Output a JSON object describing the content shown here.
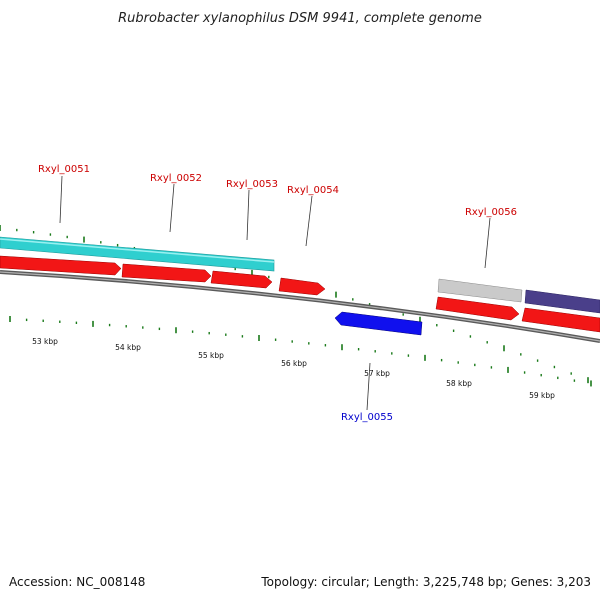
{
  "title": "Rubrobacter xylanophilus DSM 9941, complete genome",
  "accession": "Accession: NC_008148",
  "summary": "Topology: circular; Length: 3,225,748 bp; Genes: 3,203",
  "colors": {
    "forward_cds": "#ff0000",
    "reverse_cds": "#0000ff",
    "label_forward": "#cc0000",
    "label_reverse": "#0000cc",
    "backbone": "#777777",
    "tick": "#1a7a1a",
    "cyan_feature": "#33d6d6",
    "grey_feature": "#c8c8c8",
    "purple_feature": "#4a3f8a"
  },
  "gene_labels": [
    {
      "id": "lbl-0051",
      "text": "Rxyl_0051",
      "strand": "+"
    },
    {
      "id": "lbl-0052",
      "text": "Rxyl_0052",
      "strand": "+"
    },
    {
      "id": "lbl-0053",
      "text": "Rxyl_0053",
      "strand": "+"
    },
    {
      "id": "lbl-0054",
      "text": "Rxyl_0054",
      "strand": "+"
    },
    {
      "id": "lbl-0055",
      "text": "Rxyl_0055",
      "strand": "-"
    },
    {
      "id": "lbl-0056",
      "text": "Rxyl_0056",
      "strand": "+"
    }
  ],
  "kbp_labels": [
    "53 kbp",
    "54 kbp",
    "55 kbp",
    "56 kbp",
    "57 kbp",
    "58 kbp",
    "59 kbp"
  ]
}
